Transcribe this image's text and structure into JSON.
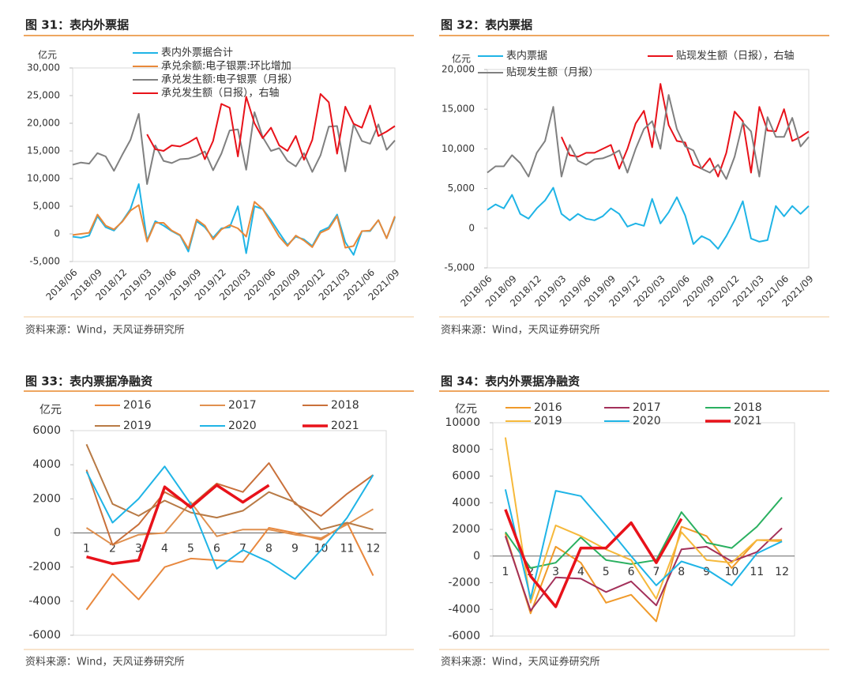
{
  "chart_data": [
    {
      "type": "line",
      "title": "图 31：表内外票据",
      "ylabel": "亿元",
      "source": "资料来源：Wind，天风证券研究所",
      "categories": [
        "2018/06",
        null,
        null,
        "2018/09",
        null,
        null,
        "2018/12",
        null,
        null,
        "2019/03",
        null,
        null,
        "2019/06",
        null,
        null,
        "2019/09",
        null,
        null,
        "2019/12",
        null,
        null,
        "2020/03",
        null,
        null,
        "2020/06",
        null,
        null,
        "2020/09",
        null,
        null,
        "2020/12",
        null,
        null,
        "2021/03",
        null,
        null,
        "2021/06",
        null,
        null,
        "2021/09"
      ],
      "ylim": [
        -5000,
        30000
      ],
      "yticks": [
        {
          "value": -5000,
          "label": "-5,000"
        },
        0,
        {
          "value": 5000,
          "label": "5,000"
        },
        {
          "value": 10000,
          "label": "10,000"
        },
        {
          "value": 15000,
          "label": "15,000"
        },
        {
          "value": 20000,
          "label": "20,000"
        },
        {
          "value": 25000,
          "label": "25,000"
        },
        {
          "value": 30000,
          "label": "30,000"
        }
      ],
      "series": [
        {
          "name": "表内外票据合计",
          "color": "#1fb4e6",
          "values": [
            -500,
            -700,
            -300,
            3200,
            1200,
            600,
            2300,
            4500,
            9000,
            -1200,
            2300,
            1500,
            500,
            -300,
            -3200,
            2300,
            1200,
            -700,
            1000,
            1200,
            5000,
            -3500,
            5000,
            4500,
            2500,
            200,
            -2000,
            -500,
            -1000,
            -2200,
            500,
            1200,
            3500,
            -1500,
            -3800,
            500,
            500,
            2500,
            -800,
            3000
          ]
        },
        {
          "name": "承兑余额:电子银票:环比增加",
          "color": "#e8893a",
          "values": [
            -200,
            0,
            200,
            3500,
            1500,
            800,
            2200,
            4200,
            5200,
            -1400,
            2000,
            2000,
            600,
            -200,
            -2700,
            2600,
            1500,
            -1000,
            800,
            1600,
            1000,
            -500,
            5800,
            4500,
            2000,
            -500,
            -2200,
            -300,
            -1200,
            -2400,
            200,
            900,
            3200,
            -2500,
            -2200,
            500,
            600,
            2500,
            -800,
            3200
          ]
        },
        {
          "name": "承兑发生额:电子银票（月报）",
          "color": "#808080",
          "values": [
            12500,
            12900,
            12700,
            14600,
            14000,
            11400,
            14300,
            17000,
            21700,
            9000,
            16000,
            13200,
            12800,
            13500,
            13600,
            14100,
            14900,
            11500,
            14500,
            18700,
            18900,
            11600,
            22000,
            17500,
            15000,
            15500,
            13200,
            12200,
            14600,
            11200,
            14200,
            19400,
            19500,
            11300,
            19800,
            16800,
            16300,
            19800,
            15200,
            16900
          ]
        },
        {
          "name": "承兑发生额（日报），右轴",
          "color": "#e8121a",
          "values": [
            null,
            null,
            null,
            null,
            null,
            null,
            null,
            null,
            null,
            18000,
            15300,
            15000,
            16000,
            15800,
            16500,
            17400,
            13500,
            16800,
            23500,
            22800,
            14000,
            24800,
            20000,
            17300,
            19200,
            16000,
            15000,
            17700,
            13400,
            17000,
            25300,
            23800,
            14500,
            23000,
            19900,
            19200,
            23200,
            17700,
            18500,
            19500
          ]
        }
      ]
    },
    {
      "type": "line",
      "title": "图 32：表内票据",
      "ylabel": "亿元",
      "source": "资料来源：Wind，天风证券研究所",
      "categories": [
        "2018/06",
        null,
        null,
        "2018/09",
        null,
        null,
        "2018/12",
        null,
        null,
        "2019/03",
        null,
        null,
        "2019/06",
        null,
        null,
        "2019/09",
        null,
        null,
        "2019/12",
        null,
        null,
        "2020/03",
        null,
        null,
        "2020/06",
        null,
        null,
        "2020/09",
        null,
        null,
        "2020/12",
        null,
        null,
        "2021/03",
        null,
        null,
        "2021/06",
        null,
        null,
        "2021/09"
      ],
      "ylim": [
        -5000,
        20000
      ],
      "yticks": [
        {
          "value": -5000,
          "label": "-5,000"
        },
        0,
        {
          "value": 5000,
          "label": "5,000"
        },
        {
          "value": 10000,
          "label": "10,000"
        },
        {
          "value": 15000,
          "label": "15,000"
        },
        {
          "value": 20000,
          "label": "20,000"
        }
      ],
      "series": [
        {
          "name": "表内票据",
          "color": "#1fb4e6",
          "values": [
            2300,
            3000,
            2500,
            4200,
            1800,
            1200,
            2500,
            3500,
            5100,
            1800,
            1000,
            1800,
            1200,
            1000,
            1500,
            2500,
            1800,
            200,
            600,
            300,
            3700,
            600,
            2000,
            3900,
            1600,
            -2000,
            -1000,
            -1500,
            -2600,
            -1000,
            1000,
            3400,
            -1300,
            -1700,
            -1500,
            2800,
            1500,
            2800,
            1800,
            2800
          ]
        },
        {
          "name": "贴现发生额（日报），右轴",
          "color": "#e8121a",
          "values": [
            null,
            null,
            null,
            null,
            null,
            null,
            null,
            null,
            null,
            11500,
            9200,
            9000,
            9500,
            9500,
            10000,
            10500,
            7500,
            10000,
            13200,
            14800,
            10200,
            18200,
            13000,
            11000,
            10800,
            8000,
            7500,
            8800,
            6500,
            9500,
            14700,
            13500,
            7000,
            15300,
            12300,
            12200,
            15000,
            11000,
            11500,
            12200
          ]
        },
        {
          "name": "贴现发生额（月报）",
          "color": "#808080",
          "values": [
            7000,
            7800,
            7800,
            9200,
            8200,
            6500,
            9500,
            11000,
            15300,
            6500,
            10500,
            8500,
            8000,
            8700,
            8800,
            9200,
            9800,
            7000,
            10000,
            12500,
            13500,
            10000,
            16800,
            12500,
            10300,
            9800,
            7500,
            7000,
            8000,
            6200,
            9000,
            13300,
            12200,
            6500,
            14000,
            11500,
            11500,
            13900,
            10300,
            11500
          ]
        }
      ]
    },
    {
      "type": "line",
      "title": "图 33：表内票据净融资",
      "ylabel": "亿元",
      "source": "资料来源：Wind，天风证券研究所",
      "categories": [
        "1",
        "2",
        "3",
        "4",
        "5",
        "6",
        "7",
        "8",
        "9",
        "10",
        "11",
        "12"
      ],
      "ylim": [
        -6000,
        6000
      ],
      "yticks": [
        -6000,
        -4000,
        -2000,
        0,
        2000,
        4000,
        6000
      ],
      "series": [
        {
          "name": "2016",
          "color": "#e8883e",
          "values": [
            -4500,
            -2400,
            -3900,
            -2000,
            -1500,
            -1600,
            -1700,
            300,
            0,
            -400,
            600,
            -2500
          ]
        },
        {
          "name": "2017",
          "color": "#e0904f",
          "values": [
            300,
            -700,
            -100,
            0,
            1800,
            -200,
            200,
            200,
            -100,
            -300,
            500,
            1400
          ]
        },
        {
          "name": "2018",
          "color": "#c9703a",
          "values": [
            3700,
            -700,
            500,
            2400,
            1600,
            2900,
            2400,
            4100,
            1700,
            1000,
            2300,
            3400
          ]
        },
        {
          "name": "2019",
          "color": "#b87a45",
          "values": [
            5200,
            1700,
            1000,
            1900,
            1200,
            900,
            1300,
            2400,
            1800,
            200,
            600,
            200
          ]
        },
        {
          "name": "2020",
          "color": "#1fb4e6",
          "values": [
            3600,
            600,
            2000,
            3900,
            1700,
            -2100,
            -1000,
            -1700,
            -2700,
            -1000,
            900,
            3400
          ]
        },
        {
          "name": "2021",
          "color": "#e8121a",
          "linewidth": 3.5,
          "values": [
            -1400,
            -1800,
            -1600,
            2700,
            1500,
            2800,
            1800,
            2800,
            null,
            null,
            null,
            null
          ]
        }
      ]
    },
    {
      "type": "line",
      "title": "图 34：表内外票据净融资",
      "ylabel": "亿元",
      "source": "资料来源：Wind，天风证券研究所",
      "categories": [
        "1",
        "2",
        "3",
        "4",
        "5",
        "6",
        "7",
        "8",
        "9",
        "10",
        "11",
        "12"
      ],
      "ylim": [
        -6000,
        10000
      ],
      "yticks": [
        -6000,
        -4000,
        -2000,
        0,
        2000,
        4000,
        6000,
        8000,
        10000
      ],
      "series": [
        {
          "name": "2016",
          "color": "#f09a2a",
          "values": [
            1700,
            -4300,
            700,
            -500,
            -3500,
            -2900,
            -4900,
            2200,
            1500,
            -900,
            1200,
            1200
          ]
        },
        {
          "name": "2017",
          "color": "#a3305a",
          "values": [
            1500,
            -4100,
            -1600,
            -1700,
            -2700,
            -1900,
            -3700,
            500,
            700,
            -400,
            300,
            2100
          ]
        },
        {
          "name": "2018",
          "color": "#2ab060",
          "values": [
            1800,
            -900,
            -500,
            1400,
            -300,
            -600,
            -300,
            3300,
            1000,
            600,
            2200,
            4400
          ]
        },
        {
          "name": "2019",
          "color": "#f6b93b",
          "values": [
            8900,
            -3500,
            2300,
            1500,
            500,
            -300,
            -3200,
            1800,
            -300,
            -500,
            1200,
            1100
          ]
        },
        {
          "name": "2020",
          "color": "#1fb4e6",
          "values": [
            5000,
            -3200,
            4900,
            4500,
            2300,
            0,
            -2200,
            -400,
            -1000,
            -2200,
            200,
            1100
          ]
        },
        {
          "name": "2021",
          "color": "#e8121a",
          "linewidth": 3.5,
          "values": [
            3500,
            -1500,
            -3800,
            600,
            600,
            2500,
            -500,
            2800,
            null,
            null,
            null,
            null
          ]
        }
      ]
    }
  ]
}
